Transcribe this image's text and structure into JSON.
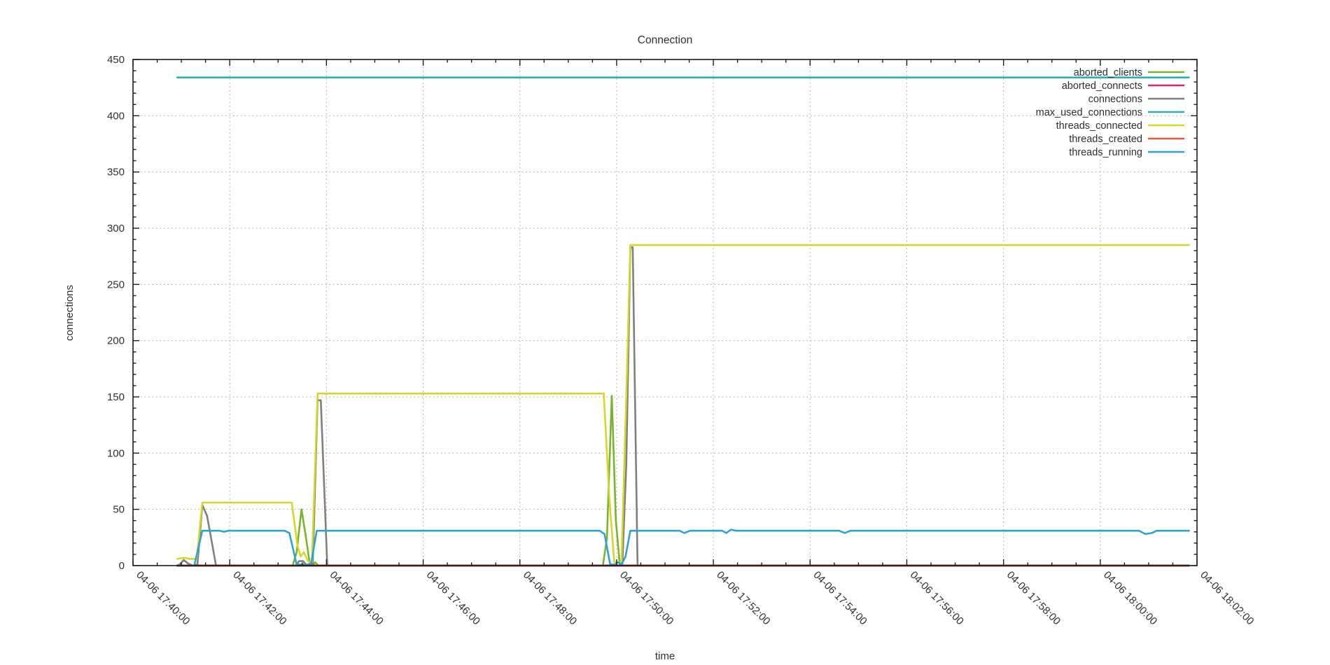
{
  "chart_data": {
    "type": "line",
    "title": "Connection",
    "xlabel": "time",
    "ylabel": "connections",
    "grid": true,
    "legend_position": "top-right-inside",
    "x_axis": {
      "range_seconds": [
        0,
        1320
      ],
      "major_tick_seconds": 120,
      "minor_tick_seconds": 30,
      "tick_labels": [
        "04-06 17:40:00",
        "04-06 17:42:00",
        "04-06 17:44:00",
        "04-06 17:46:00",
        "04-06 17:48:00",
        "04-06 17:50:00",
        "04-06 17:52:00",
        "04-06 17:54:00",
        "04-06 17:56:00",
        "04-06 17:58:00",
        "04-06 18:00:00",
        "04-06 18:02:00"
      ]
    },
    "y_axis": {
      "min": 0,
      "max": 450,
      "tick_step": 50,
      "minor_step": 10,
      "tick_labels": [
        "0",
        "50",
        "100",
        "150",
        "200",
        "250",
        "300",
        "350",
        "400",
        "450"
      ]
    },
    "series": [
      {
        "name": "aborted_clients",
        "color": "#79b42e",
        "points": [
          [
            55,
            0
          ],
          [
            58,
            1
          ],
          [
            63,
            5
          ],
          [
            68,
            2
          ],
          [
            74,
            0
          ],
          [
            198,
            0
          ],
          [
            203,
            12
          ],
          [
            209,
            50
          ],
          [
            214,
            28
          ],
          [
            219,
            3
          ],
          [
            223,
            0
          ],
          [
            226,
            3
          ],
          [
            230,
            0
          ],
          [
            583,
            0
          ],
          [
            588,
            25
          ],
          [
            594,
            151
          ],
          [
            599,
            40
          ],
          [
            604,
            0
          ],
          [
            1310,
            0
          ]
        ]
      },
      {
        "name": "aborted_connects",
        "color": "#d92568",
        "points": [
          [
            55,
            0
          ],
          [
            1310,
            0
          ]
        ]
      },
      {
        "name": "connections",
        "color": "#7f7f7f",
        "points": [
          [
            55,
            0
          ],
          [
            58,
            1
          ],
          [
            63,
            5
          ],
          [
            68,
            2
          ],
          [
            74,
            0
          ],
          [
            80,
            1
          ],
          [
            86,
            54
          ],
          [
            92,
            44
          ],
          [
            103,
            0
          ],
          [
            202,
            0
          ],
          [
            206,
            4
          ],
          [
            211,
            4
          ],
          [
            216,
            0
          ],
          [
            223,
            1
          ],
          [
            229,
            147
          ],
          [
            233,
            147
          ],
          [
            241,
            0
          ],
          [
            607,
            0
          ],
          [
            612,
            90
          ],
          [
            617,
            283
          ],
          [
            620,
            283
          ],
          [
            626,
            0
          ],
          [
            1310,
            0
          ]
        ]
      },
      {
        "name": "max_used_connections",
        "color": "#27b4b0",
        "points": [
          [
            55,
            434
          ],
          [
            1310,
            434
          ]
        ]
      },
      {
        "name": "threads_connected",
        "color": "#d5d626",
        "points": [
          [
            55,
            6
          ],
          [
            63,
            7
          ],
          [
            70,
            6
          ],
          [
            79,
            6
          ],
          [
            86,
            56
          ],
          [
            197,
            56
          ],
          [
            204,
            18
          ],
          [
            208,
            8
          ],
          [
            212,
            12
          ],
          [
            217,
            4
          ],
          [
            222,
            3
          ],
          [
            229,
            153
          ],
          [
            584,
            153
          ],
          [
            591,
            60
          ],
          [
            597,
            3
          ],
          [
            606,
            3
          ],
          [
            612,
            150
          ],
          [
            617,
            285
          ],
          [
            1310,
            285
          ]
        ]
      },
      {
        "name": "threads_created",
        "color": "#e8573a",
        "points": [
          [
            55,
            0
          ],
          [
            1310,
            0
          ]
        ]
      },
      {
        "name": "threads_running",
        "color": "#2ba3d5",
        "points": [
          [
            55,
            0
          ],
          [
            76,
            0
          ],
          [
            86,
            31
          ],
          [
            108,
            31
          ],
          [
            113,
            30
          ],
          [
            118,
            31
          ],
          [
            188,
            31
          ],
          [
            194,
            29
          ],
          [
            203,
            1
          ],
          [
            217,
            1
          ],
          [
            221,
            2
          ],
          [
            228,
            31
          ],
          [
            579,
            31
          ],
          [
            585,
            28
          ],
          [
            592,
            1
          ],
          [
            598,
            1
          ],
          [
            602,
            3
          ],
          [
            606,
            1
          ],
          [
            611,
            8
          ],
          [
            617,
            31
          ],
          [
            678,
            31
          ],
          [
            684,
            29
          ],
          [
            691,
            31
          ],
          [
            731,
            31
          ],
          [
            736,
            29
          ],
          [
            742,
            32
          ],
          [
            748,
            31
          ],
          [
            876,
            31
          ],
          [
            883,
            29
          ],
          [
            890,
            31
          ],
          [
            1248,
            31
          ],
          [
            1256,
            28
          ],
          [
            1264,
            29
          ],
          [
            1270,
            31
          ],
          [
            1310,
            31
          ]
        ]
      }
    ],
    "zero_overlap_line": {
      "color": "#7d2b24",
      "from_second": 55,
      "to_second": 1310,
      "value": 0
    },
    "colors": {
      "grid": "#9e9e9e",
      "axis": "#1c1c1c",
      "text": "#2f2f2f",
      "background": "#ffffff"
    }
  }
}
